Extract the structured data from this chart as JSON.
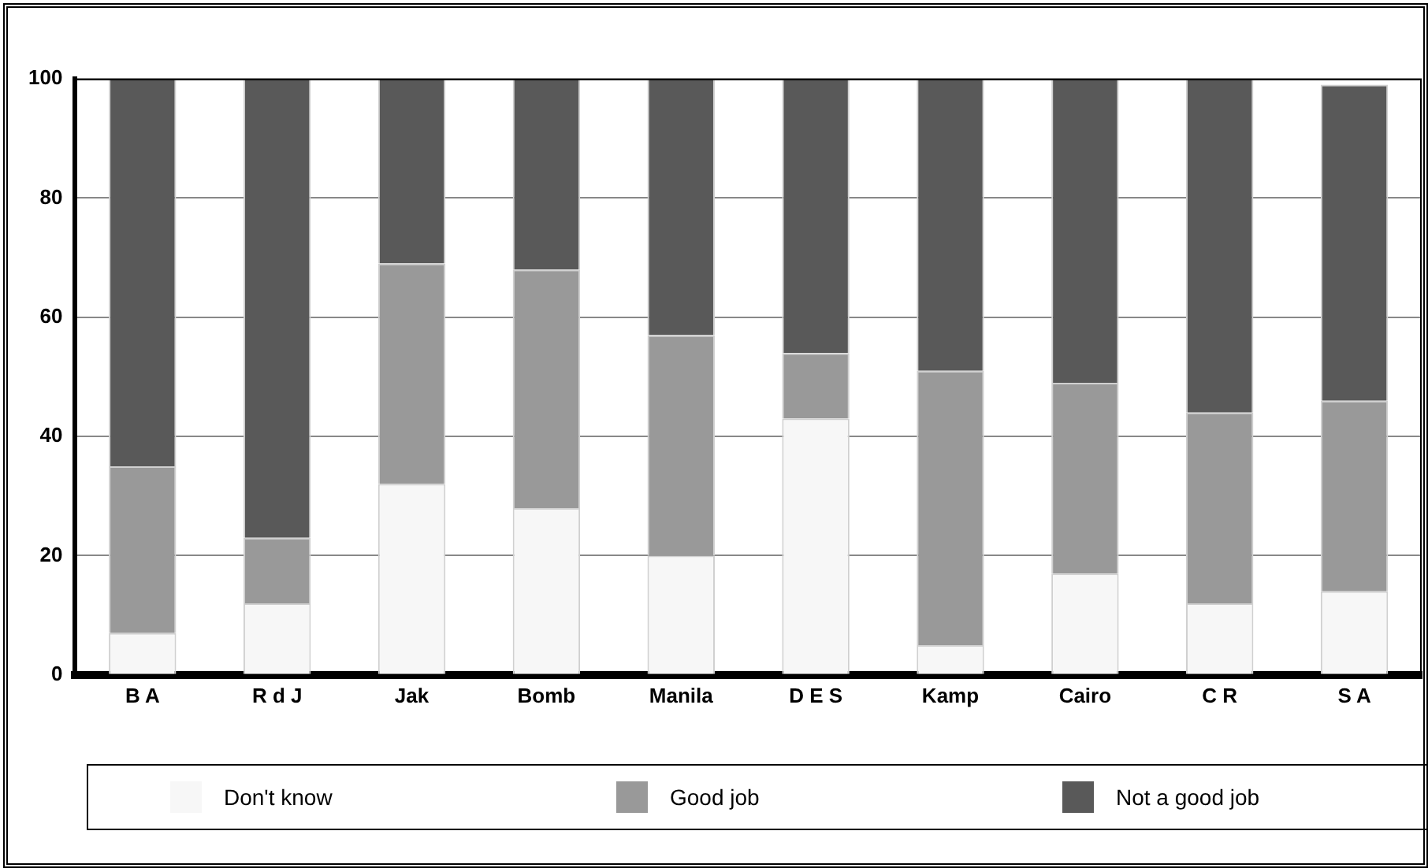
{
  "chart_data": {
    "type": "bar",
    "stacked": true,
    "categories": [
      "B A",
      "R d J",
      "Jak",
      "Bomb",
      "Manila",
      "D E S",
      "Kamp",
      "Cairo",
      "C R",
      "S A"
    ],
    "series": [
      {
        "name": "Don't know",
        "color": "#f7f7f7",
        "values": [
          7,
          12,
          32,
          28,
          20,
          43,
          5,
          17,
          12,
          14
        ]
      },
      {
        "name": "Good job",
        "color": "#999999",
        "values": [
          28,
          11,
          37,
          40,
          37,
          11,
          46,
          32,
          32,
          32
        ]
      },
      {
        "name": "Not a good job",
        "color": "#595959",
        "values": [
          65,
          77,
          31,
          32,
          43,
          46,
          49,
          51,
          56,
          53
        ]
      }
    ],
    "ylim": [
      0,
      100
    ],
    "yticks": [
      0,
      20,
      40,
      60,
      80,
      100
    ],
    "grid": "y",
    "legend": "bottom"
  }
}
